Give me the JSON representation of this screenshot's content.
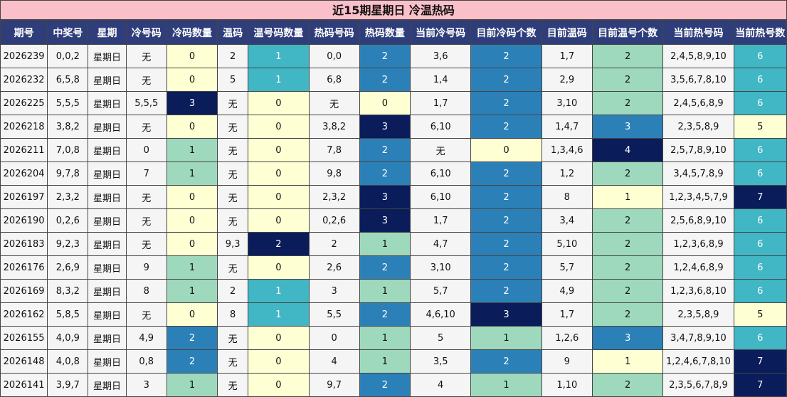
{
  "title": "近15期星期日 冷温热码",
  "headers": [
    "期号",
    "中奖号",
    "星期",
    "冷号码",
    "冷码数量",
    "温码",
    "温号码数量",
    "热码号码",
    "热码数量",
    "当前冷号码",
    "目前冷码个数",
    "目前温码",
    "目前温号个数",
    "当前热号码",
    "当前热号数"
  ],
  "rows": [
    [
      "2026239",
      "0,0,2",
      "星期日",
      "无",
      "0",
      "2",
      "1",
      "0,0",
      "2",
      "3,6",
      "2",
      "1,7",
      "2",
      "2,4,5,8,9,10",
      "6"
    ],
    [
      "2026232",
      "6,5,8",
      "星期日",
      "无",
      "0",
      "5",
      "1",
      "6,8",
      "2",
      "1,4",
      "2",
      "2,9",
      "2",
      "3,5,6,7,8,10",
      "6"
    ],
    [
      "2026225",
      "5,5,5",
      "星期日",
      "5,5,5",
      "3",
      "无",
      "0",
      "无",
      "0",
      "1,7",
      "2",
      "3,10",
      "2",
      "2,4,5,6,8,9",
      "6"
    ],
    [
      "2026218",
      "3,8,2",
      "星期日",
      "无",
      "0",
      "无",
      "0",
      "3,8,2",
      "3",
      "6,10",
      "2",
      "1,4,7",
      "3",
      "2,3,5,8,9",
      "5"
    ],
    [
      "2026211",
      "7,0,8",
      "星期日",
      "0",
      "1",
      "无",
      "0",
      "7,8",
      "2",
      "无",
      "0",
      "1,3,4,6",
      "4",
      "2,5,7,8,9,10",
      "6"
    ],
    [
      "2026204",
      "9,7,8",
      "星期日",
      "7",
      "1",
      "无",
      "0",
      "9,8",
      "2",
      "6,10",
      "2",
      "1,2",
      "2",
      "3,4,5,7,8,9",
      "6"
    ],
    [
      "2026197",
      "2,3,2",
      "星期日",
      "无",
      "0",
      "无",
      "0",
      "2,3,2",
      "3",
      "6,10",
      "2",
      "8",
      "1",
      "1,2,3,4,5,7,9",
      "7"
    ],
    [
      "2026190",
      "0,2,6",
      "星期日",
      "无",
      "0",
      "无",
      "0",
      "0,2,6",
      "3",
      "1,7",
      "2",
      "3,4",
      "2",
      "2,5,6,8,9,10",
      "6"
    ],
    [
      "2026183",
      "9,2,3",
      "星期日",
      "无",
      "0",
      "9,3",
      "2",
      "2",
      "1",
      "4,7",
      "2",
      "5,10",
      "2",
      "1,2,3,6,8,9",
      "6"
    ],
    [
      "2026176",
      "2,6,9",
      "星期日",
      "9",
      "1",
      "无",
      "0",
      "2,6",
      "2",
      "3,10",
      "2",
      "5,7",
      "2",
      "1,2,4,6,8,9",
      "6"
    ],
    [
      "2026169",
      "8,3,2",
      "星期日",
      "8",
      "1",
      "2",
      "1",
      "3",
      "1",
      "5,7",
      "2",
      "4,9",
      "2",
      "1,2,3,6,8,10",
      "6"
    ],
    [
      "2026162",
      "5,8,5",
      "星期日",
      "无",
      "0",
      "8",
      "1",
      "5,5",
      "2",
      "4,6,10",
      "3",
      "1,7",
      "2",
      "2,3,5,8,9",
      "5"
    ],
    [
      "2026155",
      "4,0,9",
      "星期日",
      "4,9",
      "2",
      "无",
      "0",
      "0",
      "1",
      "5",
      "1",
      "1,2,6",
      "3",
      "3,4,7,8,9,10",
      "6"
    ],
    [
      "2026148",
      "4,0,8",
      "星期日",
      "0,8",
      "2",
      "无",
      "0",
      "4",
      "1",
      "3,5",
      "2",
      "9",
      "1",
      "1,2,4,6,7,8,10",
      "7"
    ],
    [
      "2026141",
      "3,9,7",
      "星期日",
      "3",
      "1",
      "无",
      "0",
      "9,7",
      "2",
      "4",
      "1",
      "1,10",
      "2",
      "2,3,5,6,7,8,9",
      "7"
    ]
  ],
  "colors": {
    "header_bg": "#2f3e7b",
    "title_bg": "#fbbfca",
    "level_light": "#ffffd4",
    "level_mint": "#9ed9be",
    "level_blue": "#2c80b8",
    "level_teal": "#41b6c4",
    "level_navy": "#0a1c5a"
  }
}
